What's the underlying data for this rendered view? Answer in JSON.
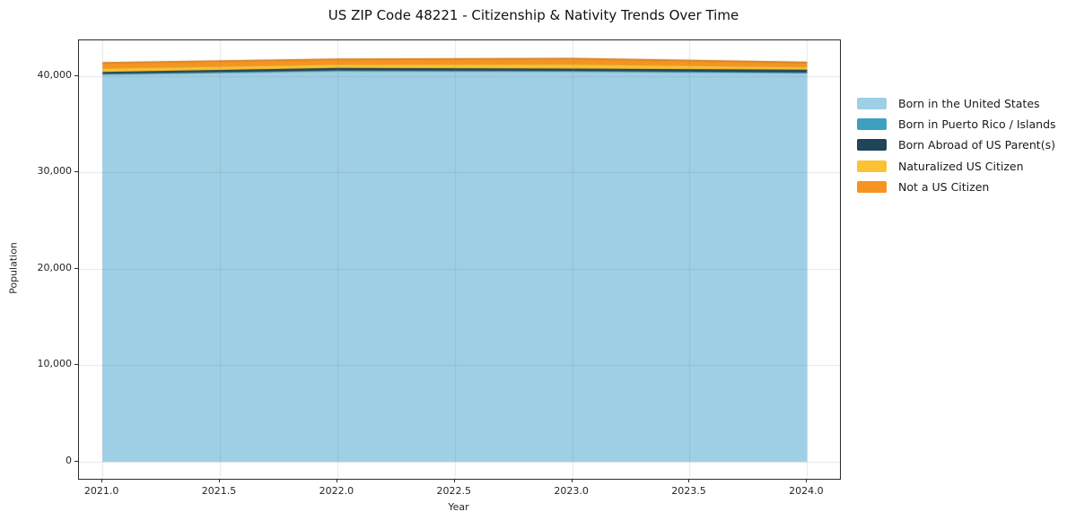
{
  "title": "US ZIP Code 48221 - Citizenship & Nativity Trends Over Time",
  "chart_data": {
    "type": "area",
    "stacked": true,
    "title": "US ZIP Code 48221 - Citizenship & Nativity Trends Over Time",
    "xlabel": "Year",
    "ylabel": "Population",
    "x": [
      2021,
      2022,
      2023,
      2024
    ],
    "series": [
      {
        "name": "Born in the United States",
        "color": "#9ecfe5",
        "values": [
          40200,
          40550,
          40500,
          40350
        ]
      },
      {
        "name": "Born in Puerto Rico / Islands",
        "color": "#3ea0c0",
        "values": [
          50,
          60,
          60,
          50
        ]
      },
      {
        "name": "Born Abroad of US Parent(s)",
        "color": "#204458",
        "values": [
          200,
          240,
          230,
          280
        ]
      },
      {
        "name": "Naturalized US Citizen",
        "color": "#fcc233",
        "values": [
          400,
          380,
          460,
          300
        ]
      },
      {
        "name": "Not a US Citizen",
        "color": "#f69321",
        "values": [
          550,
          530,
          580,
          450
        ]
      }
    ],
    "totals": [
      41400,
      41760,
      41830,
      41430
    ],
    "xlim": [
      2020.9,
      2024.14
    ],
    "ylim": [
      -1770,
      43720
    ],
    "xticks": [
      {
        "value": 2021.0,
        "label": "2021.0"
      },
      {
        "value": 2021.5,
        "label": "2021.5"
      },
      {
        "value": 2022.0,
        "label": "2022.0"
      },
      {
        "value": 2022.5,
        "label": "2022.5"
      },
      {
        "value": 2023.0,
        "label": "2023.0"
      },
      {
        "value": 2023.5,
        "label": "2023.5"
      },
      {
        "value": 2024.0,
        "label": "2024.0"
      }
    ],
    "yticks": [
      {
        "value": 0,
        "label": "0"
      },
      {
        "value": 10000,
        "label": "10,000"
      },
      {
        "value": 20000,
        "label": "20,000"
      },
      {
        "value": 30000,
        "label": "30,000"
      },
      {
        "value": 40000,
        "label": "40,000"
      }
    ],
    "grid": true,
    "legend_position": "right-outside"
  }
}
